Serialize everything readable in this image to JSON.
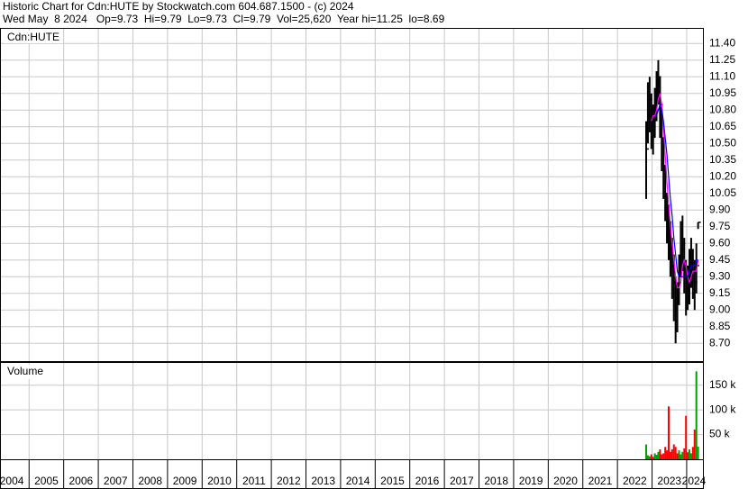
{
  "header": {
    "line1": "Historic Chart for Cdn:HUTE by Stockwatch.com 604.687.1500 - (c) 2024",
    "line2": "Wed May  8 2024   Op=9.73  Hi=9.79  Lo=9.73  Cl=9.79  Vol=25,620  Year hi=11.25  lo=8.69"
  },
  "chart_data": [
    {
      "type": "ohlc",
      "title": "Cdn:HUTE",
      "color": "#000000",
      "grid": true,
      "x": [
        2022.83,
        2022.88,
        2022.93,
        2022.98,
        2023.03,
        2023.08,
        2023.13,
        2023.18,
        2023.23,
        2023.28,
        2023.33,
        2023.38,
        2023.43,
        2023.48,
        2023.53,
        2023.58,
        2023.63,
        2023.68,
        2023.73,
        2023.78,
        2023.83,
        2023.88,
        2023.93,
        2023.98,
        2024.03,
        2024.08,
        2024.13,
        2024.18,
        2024.23,
        2024.28,
        2024.33
      ],
      "high": [
        10.7,
        11.05,
        11.1,
        10.95,
        10.85,
        11.0,
        11.15,
        11.25,
        11.1,
        10.8,
        10.55,
        10.3,
        10.05,
        9.95,
        9.8,
        9.65,
        9.5,
        9.3,
        9.25,
        9.5,
        9.8,
        9.85,
        9.65,
        9.45,
        9.4,
        9.55,
        9.65,
        9.55,
        9.45,
        9.6,
        9.79
      ],
      "low": [
        10.0,
        10.5,
        10.6,
        10.45,
        10.4,
        10.55,
        10.7,
        10.85,
        10.55,
        10.25,
        10.0,
        9.8,
        9.6,
        9.45,
        9.3,
        9.1,
        8.9,
        8.7,
        8.8,
        9.05,
        9.3,
        9.35,
        9.15,
        8.95,
        9.0,
        9.05,
        9.2,
        9.1,
        9.0,
        9.15,
        9.73
      ],
      "close": [
        10.45,
        10.75,
        10.9,
        10.7,
        10.65,
        10.8,
        10.95,
        11.1,
        10.85,
        10.55,
        10.3,
        10.05,
        9.85,
        9.7,
        9.55,
        9.4,
        9.25,
        9.1,
        9.05,
        9.3,
        9.55,
        9.6,
        9.4,
        9.2,
        9.15,
        9.3,
        9.45,
        9.35,
        9.25,
        9.4,
        9.79
      ],
      "ma_short": {
        "color": "#ff00ff",
        "values": [
          null,
          null,
          null,
          10.7,
          10.75,
          10.75,
          10.8,
          10.9,
          10.95,
          10.85,
          10.65,
          10.4,
          10.15,
          9.95,
          9.75,
          9.6,
          9.45,
          9.3,
          9.2,
          9.2,
          9.25,
          9.4,
          9.45,
          9.4,
          9.3,
          9.25,
          9.3,
          9.35,
          9.35,
          9.35,
          9.45
        ]
      },
      "ma_long": {
        "color": "#0000ff",
        "values": [
          null,
          null,
          null,
          null,
          null,
          null,
          10.75,
          10.8,
          10.85,
          10.8,
          10.7,
          10.55,
          10.4,
          10.2,
          10.0,
          9.85,
          9.65,
          9.5,
          9.35,
          9.3,
          9.3,
          9.3,
          9.3,
          9.3,
          9.3,
          9.35,
          9.4,
          9.4,
          9.4,
          9.45,
          9.45
        ]
      },
      "xlim": [
        2004.16,
        2024.47
      ],
      "xticks": [
        2004,
        2005,
        2006,
        2007,
        2008,
        2009,
        2010,
        2011,
        2012,
        2013,
        2014,
        2015,
        2016,
        2017,
        2018,
        2019,
        2020,
        2021,
        2022,
        2023,
        2024
      ],
      "ylim": [
        8.54,
        11.54
      ],
      "yticks": [
        {
          "value": 8.7,
          "label": "8.70"
        },
        {
          "value": 8.85,
          "label": "8.85"
        },
        {
          "value": 9.0,
          "label": "9.00"
        },
        {
          "value": 9.15,
          "label": "9.15"
        },
        {
          "value": 9.3,
          "label": "9.30"
        },
        {
          "value": 9.45,
          "label": "9.45"
        },
        {
          "value": 9.6,
          "label": "9.60"
        },
        {
          "value": 9.75,
          "label": "9.75"
        },
        {
          "value": 9.9,
          "label": "9.90"
        },
        {
          "value": 10.05,
          "label": "10.05"
        },
        {
          "value": 10.2,
          "label": "10.20"
        },
        {
          "value": 10.35,
          "label": "10.35"
        },
        {
          "value": 10.5,
          "label": "10.50"
        },
        {
          "value": 10.65,
          "label": "10.65"
        },
        {
          "value": 10.8,
          "label": "10.80"
        },
        {
          "value": 10.95,
          "label": "10.95"
        },
        {
          "value": 11.1,
          "label": "11.10"
        },
        {
          "value": 11.25,
          "label": "11.25"
        },
        {
          "value": 11.4,
          "label": "11.40"
        }
      ]
    },
    {
      "type": "bar",
      "title": "Volume",
      "up_color": "#00a000",
      "down_color": "#ff0000",
      "grid": true,
      "x": [
        2022.83,
        2022.88,
        2022.93,
        2022.98,
        2023.03,
        2023.08,
        2023.13,
        2023.18,
        2023.23,
        2023.28,
        2023.33,
        2023.38,
        2023.43,
        2023.48,
        2023.53,
        2023.58,
        2023.63,
        2023.68,
        2023.73,
        2023.78,
        2023.83,
        2023.88,
        2023.93,
        2023.98,
        2024.03,
        2024.08,
        2024.13,
        2024.18,
        2024.23,
        2024.28,
        2024.33
      ],
      "values": [
        30000,
        8000,
        6000,
        10000,
        5000,
        12000,
        9000,
        15000,
        20000,
        10000,
        12000,
        25000,
        18000,
        107000,
        15000,
        20000,
        30000,
        25000,
        12000,
        18000,
        10000,
        15000,
        22000,
        88000,
        14000,
        20000,
        12000,
        25000,
        60000,
        178000,
        25620
      ],
      "xlim": [
        2004.16,
        2024.47
      ],
      "ylim": [
        0,
        195000
      ],
      "yticks": [
        {
          "value": 50000,
          "label": "50 k"
        },
        {
          "value": 100000,
          "label": "100 k"
        },
        {
          "value": 150000,
          "label": "150 k"
        }
      ]
    }
  ]
}
